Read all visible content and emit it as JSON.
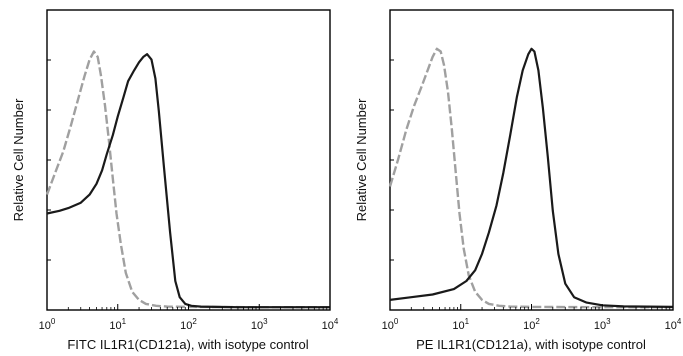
{
  "chart_data": [
    {
      "type": "line",
      "title": "",
      "xlabel": "FITC IL1R1(CD121a), with isotype control",
      "ylabel": "Relative Cell Number",
      "x_scale": "log",
      "xlim": [
        1,
        10000
      ],
      "ylim": [
        0,
        1
      ],
      "x_ticks": [
        1,
        10,
        100,
        1000,
        10000
      ],
      "x_tick_labels": [
        {
          "base": "10",
          "exp": "0"
        },
        {
          "base": "10",
          "exp": "1"
        },
        {
          "base": "10",
          "exp": "2"
        },
        {
          "base": "10",
          "exp": "3"
        },
        {
          "base": "10",
          "exp": "4"
        }
      ],
      "grid": false,
      "legend": "none",
      "series": [
        {
          "color": "#a0a0a0",
          "dashed": true,
          "x": [
            1,
            1.3,
            1.7,
            2.2,
            2.8,
            3.4,
            4.0,
            4.6,
            5.2,
            5.8,
            6.6,
            7.5,
            8.5,
            9.6,
            11,
            13,
            16,
            20,
            25,
            35,
            50,
            100,
            1000,
            10000
          ],
          "y": [
            0.42,
            0.5,
            0.58,
            0.68,
            0.78,
            0.86,
            0.92,
            0.95,
            0.93,
            0.86,
            0.75,
            0.62,
            0.48,
            0.35,
            0.24,
            0.13,
            0.06,
            0.03,
            0.015,
            0.008,
            0.005,
            0.004,
            0.003,
            0.003
          ]
        },
        {
          "color": "#1a1a1a",
          "dashed": false,
          "x": [
            1,
            1.5,
            2,
            3,
            4,
            5,
            6,
            7,
            8.5,
            10,
            12,
            14,
            17,
            20,
            23,
            26,
            30,
            34,
            38,
            45,
            55,
            65,
            75,
            90,
            110,
            150,
            250,
            500,
            1000,
            10000
          ],
          "y": [
            0.35,
            0.36,
            0.37,
            0.39,
            0.42,
            0.46,
            0.51,
            0.57,
            0.64,
            0.71,
            0.78,
            0.84,
            0.88,
            0.91,
            0.93,
            0.94,
            0.92,
            0.85,
            0.73,
            0.52,
            0.28,
            0.1,
            0.04,
            0.015,
            0.008,
            0.005,
            0.004,
            0.003,
            0.003,
            0.003
          ]
        }
      ]
    },
    {
      "type": "line",
      "title": "",
      "xlabel": "PE IL1R1(CD121a), with isotype control",
      "ylabel": "Relative Cell Number",
      "x_scale": "log",
      "xlim": [
        1,
        10000
      ],
      "ylim": [
        0,
        1
      ],
      "x_ticks": [
        1,
        10,
        100,
        1000,
        10000
      ],
      "x_tick_labels": [
        {
          "base": "10",
          "exp": "0"
        },
        {
          "base": "10",
          "exp": "1"
        },
        {
          "base": "10",
          "exp": "2"
        },
        {
          "base": "10",
          "exp": "3"
        },
        {
          "base": "10",
          "exp": "4"
        }
      ],
      "grid": false,
      "legend": "none",
      "series": [
        {
          "color": "#a0a0a0",
          "dashed": true,
          "x": [
            1,
            1.3,
            1.7,
            2.2,
            2.8,
            3.4,
            4.0,
            4.6,
            5.2,
            5.8,
            6.6,
            7.5,
            8.5,
            9.6,
            11,
            13,
            16,
            20,
            25,
            35,
            50,
            100,
            1000,
            10000
          ],
          "y": [
            0.45,
            0.55,
            0.66,
            0.75,
            0.82,
            0.88,
            0.93,
            0.96,
            0.95,
            0.9,
            0.8,
            0.66,
            0.5,
            0.35,
            0.22,
            0.12,
            0.06,
            0.03,
            0.015,
            0.008,
            0.005,
            0.004,
            0.003,
            0.003
          ]
        },
        {
          "color": "#1a1a1a",
          "dashed": false,
          "x": [
            1,
            2,
            4,
            8,
            12,
            16,
            20,
            25,
            32,
            40,
            50,
            62,
            75,
            90,
            100,
            110,
            125,
            145,
            170,
            200,
            240,
            300,
            400,
            600,
            1000,
            2000,
            10000
          ],
          "y": [
            0.03,
            0.04,
            0.05,
            0.07,
            0.1,
            0.14,
            0.2,
            0.28,
            0.38,
            0.5,
            0.64,
            0.78,
            0.88,
            0.94,
            0.96,
            0.95,
            0.88,
            0.74,
            0.56,
            0.36,
            0.2,
            0.09,
            0.04,
            0.02,
            0.01,
            0.006,
            0.004
          ]
        }
      ]
    }
  ]
}
